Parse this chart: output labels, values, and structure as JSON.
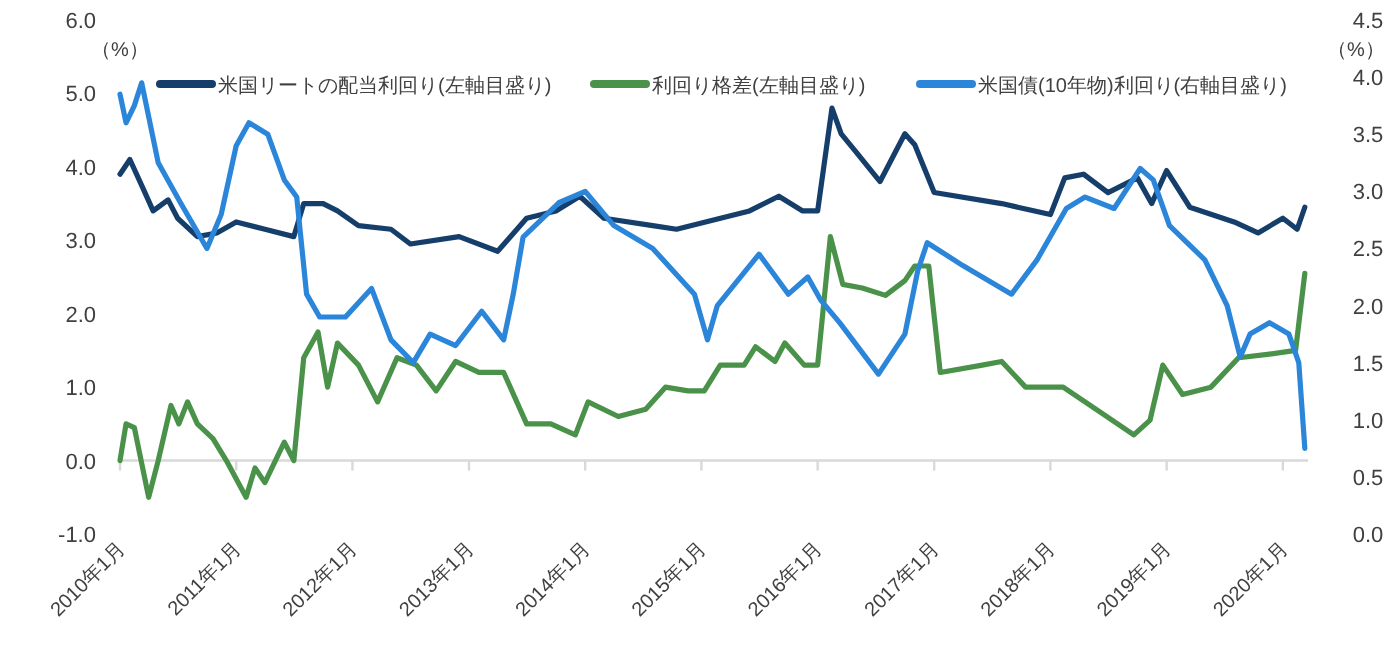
{
  "chart_data": {
    "type": "line",
    "ylabel": "（%）",
    "y2label": "（%）",
    "legend": "top",
    "xlim": [
      "2010-01-01",
      "2020-03-20"
    ],
    "xticks": [
      {
        "value": "2010-01",
        "label": "2010年1月"
      },
      {
        "value": "2011-01",
        "label": "2011年1月"
      },
      {
        "value": "2012-01",
        "label": "2012年1月"
      },
      {
        "value": "2013-01",
        "label": "2013年1月"
      },
      {
        "value": "2014-01",
        "label": "2014年1月"
      },
      {
        "value": "2015-01",
        "label": "2015年1月"
      },
      {
        "value": "2016-01",
        "label": "2016年1月"
      },
      {
        "value": "2017-01",
        "label": "2017年1月"
      },
      {
        "value": "2018-01",
        "label": "2018年1月"
      },
      {
        "value": "2019-01",
        "label": "2019年1月"
      },
      {
        "value": "2020-01",
        "label": "2020年1月"
      }
    ],
    "ylim": [
      -1,
      6
    ],
    "yticks": [
      {
        "value": -1,
        "label": "-1.0"
      },
      {
        "value": 0,
        "label": "0.0"
      },
      {
        "value": 1,
        "label": "1.0"
      },
      {
        "value": 2,
        "label": "2.0"
      },
      {
        "value": 3,
        "label": "3.0"
      },
      {
        "value": 4,
        "label": "4.0"
      },
      {
        "value": 5,
        "label": "5.0"
      },
      {
        "value": 6,
        "label": "6.0"
      }
    ],
    "y2lim": [
      0,
      4.5
    ],
    "y2ticks": [
      {
        "value": 0,
        "label": "0.0"
      },
      {
        "value": 0.5,
        "label": "0.5"
      },
      {
        "value": 1,
        "label": "1.0"
      },
      {
        "value": 1.5,
        "label": "1.5"
      },
      {
        "value": 2,
        "label": "2.0"
      },
      {
        "value": 2.5,
        "label": "2.5"
      },
      {
        "value": 3,
        "label": "3.0"
      },
      {
        "value": 3.5,
        "label": "3.5"
      },
      {
        "value": 4,
        "label": "4.0"
      },
      {
        "value": 4.5,
        "label": "4.5"
      }
    ],
    "ref_lines": [
      {
        "axis": "y",
        "value": 0,
        "color": "#d9d9d9"
      }
    ],
    "series": [
      {
        "name": "米国リートの配当利回り(左軸目盛り)",
        "color": "#163e6b",
        "x": [
          "2010-01-01",
          "2010-02-01",
          "2010-03-15",
          "2010-04-15",
          "2010-06-01",
          "2010-07-01",
          "2010-09-01",
          "2010-11-01",
          "2011-01-01",
          "2011-04-01",
          "2011-07-01",
          "2011-08-01",
          "2011-10-01",
          "2011-11-15",
          "2012-01-20",
          "2012-05-01",
          "2012-07-01",
          "2012-12-01",
          "2013-04-01",
          "2013-07-01",
          "2013-10-01",
          "2013-12-15",
          "2014-03-01",
          "2014-08-01",
          "2014-10-15",
          "2015-06-01",
          "2015-09-01",
          "2015-11-15",
          "2016-01-01",
          "2016-02-15",
          "2016-03-15",
          "2016-05-01",
          "2016-07-15",
          "2016-10-01",
          "2016-11-01",
          "2017-01-01",
          "2017-08-01",
          "2018-01-01",
          "2018-02-15",
          "2018-04-15",
          "2018-07-01",
          "2018-10-01",
          "2018-11-15",
          "2019-01-01",
          "2019-03-15",
          "2019-08-01",
          "2019-10-15",
          "2020-01-01",
          "2020-02-15",
          "2020-03-10"
        ],
        "values": [
          3.9,
          4.1,
          3.7,
          3.4,
          3.55,
          3.3,
          3.05,
          3.1,
          3.25,
          3.15,
          3.05,
          3.5,
          3.5,
          3.4,
          3.2,
          3.15,
          2.95,
          3.05,
          2.85,
          3.3,
          3.4,
          3.6,
          3.3,
          3.2,
          3.15,
          3.4,
          3.6,
          3.4,
          3.4,
          4.8,
          4.45,
          4.2,
          3.8,
          4.45,
          4.3,
          3.65,
          3.5,
          3.35,
          3.85,
          3.9,
          3.65,
          3.85,
          3.5,
          3.95,
          3.45,
          3.25,
          3.1,
          3.3,
          3.15,
          3.45
        ]
      },
      {
        "name": "利回り格差(左軸目盛り)",
        "color": "#4a914a",
        "x": [
          "2010-01-01",
          "2010-01-20",
          "2010-02-15",
          "2010-04-01",
          "2010-05-01",
          "2010-06-10",
          "2010-07-05",
          "2010-08-01",
          "2010-09-01",
          "2010-10-20",
          "2010-12-01",
          "2011-02-01",
          "2011-03-01",
          "2011-04-01",
          "2011-06-01",
          "2011-07-01",
          "2011-08-01",
          "2011-09-15",
          "2011-10-15",
          "2011-11-15",
          "2012-01-20",
          "2012-03-20",
          "2012-05-20",
          "2012-07-20",
          "2012-09-20",
          "2012-11-20",
          "2013-02-01",
          "2013-04-20",
          "2013-07-01",
          "2013-09-15",
          "2013-12-01",
          "2014-01-10",
          "2014-04-15",
          "2014-07-10",
          "2014-09-10",
          "2014-11-20",
          "2015-01-10",
          "2015-03-01",
          "2015-05-15",
          "2015-06-20",
          "2015-08-20",
          "2015-09-20",
          "2015-11-20",
          "2016-01-01",
          "2016-02-10",
          "2016-03-20",
          "2016-05-20",
          "2016-08-01",
          "2016-10-01",
          "2016-11-01",
          "2016-12-15",
          "2017-01-20",
          "2017-06-01",
          "2017-08-01",
          "2017-10-15",
          "2018-02-10",
          "2018-06-10",
          "2018-09-20",
          "2018-11-10",
          "2018-12-20",
          "2019-02-20",
          "2019-05-20",
          "2019-08-15",
          "2019-11-20",
          "2020-02-10",
          "2020-03-10"
        ],
        "values": [
          0.0,
          0.5,
          0.45,
          -0.5,
          0.0,
          0.75,
          0.5,
          0.8,
          0.5,
          0.3,
          0.0,
          -0.5,
          -0.1,
          -0.3,
          0.25,
          0.0,
          1.4,
          1.75,
          1.0,
          1.6,
          1.3,
          0.8,
          1.4,
          1.3,
          0.95,
          1.35,
          1.2,
          1.2,
          0.5,
          0.5,
          0.35,
          0.8,
          0.6,
          0.7,
          1.0,
          0.95,
          0.95,
          1.3,
          1.3,
          1.55,
          1.35,
          1.6,
          1.3,
          1.3,
          3.05,
          2.4,
          2.35,
          2.25,
          2.45,
          2.65,
          2.65,
          1.2,
          1.3,
          1.35,
          1.0,
          1.0,
          0.65,
          0.35,
          0.55,
          1.3,
          0.9,
          1.0,
          1.4,
          1.45,
          1.5,
          2.55
        ]
      },
      {
        "name": "米国債(10年物)利回り(右軸目盛り)",
        "color": "#2b86da",
        "axis": "y2",
        "x": [
          "2010-01-01",
          "2010-01-20",
          "2010-02-15",
          "2010-03-10",
          "2010-05-01",
          "2010-07-10",
          "2010-10-01",
          "2010-11-15",
          "2011-01-01",
          "2011-02-10",
          "2011-04-10",
          "2011-06-01",
          "2011-07-10",
          "2011-08-10",
          "2011-09-20",
          "2011-12-10",
          "2012-03-01",
          "2012-05-01",
          "2012-07-10",
          "2012-09-01",
          "2012-11-20",
          "2013-02-10",
          "2013-04-20",
          "2013-05-20",
          "2013-06-20",
          "2013-10-10",
          "2014-01-01",
          "2014-04-01",
          "2014-08-01",
          "2014-12-10",
          "2015-01-20",
          "2015-02-20",
          "2015-07-01",
          "2015-10-01",
          "2015-12-01",
          "2016-01-10",
          "2016-03-10",
          "2016-07-10",
          "2016-10-01",
          "2016-11-10",
          "2016-12-10",
          "2017-04-01",
          "2017-09-01",
          "2017-11-20",
          "2018-02-20",
          "2018-04-20",
          "2018-07-20",
          "2018-10-10",
          "2018-11-20",
          "2019-01-10",
          "2019-05-01",
          "2019-07-10",
          "2019-08-20",
          "2019-09-20",
          "2019-11-20",
          "2020-01-20",
          "2020-02-20",
          "2020-03-10"
        ],
        "values": [
          3.85,
          3.6,
          3.75,
          3.95,
          3.25,
          2.9,
          2.5,
          2.8,
          3.4,
          3.6,
          3.5,
          3.1,
          2.95,
          2.1,
          1.9,
          1.9,
          2.15,
          1.7,
          1.5,
          1.75,
          1.65,
          1.95,
          1.7,
          2.1,
          2.6,
          2.9,
          3.0,
          2.7,
          2.5,
          2.1,
          1.7,
          2.0,
          2.45,
          2.1,
          2.25,
          2.05,
          1.85,
          1.4,
          1.75,
          2.3,
          2.55,
          2.35,
          2.1,
          2.4,
          2.85,
          2.95,
          2.85,
          3.2,
          3.1,
          2.7,
          2.4,
          2.0,
          1.55,
          1.75,
          1.85,
          1.75,
          1.5,
          0.75
        ]
      }
    ]
  }
}
